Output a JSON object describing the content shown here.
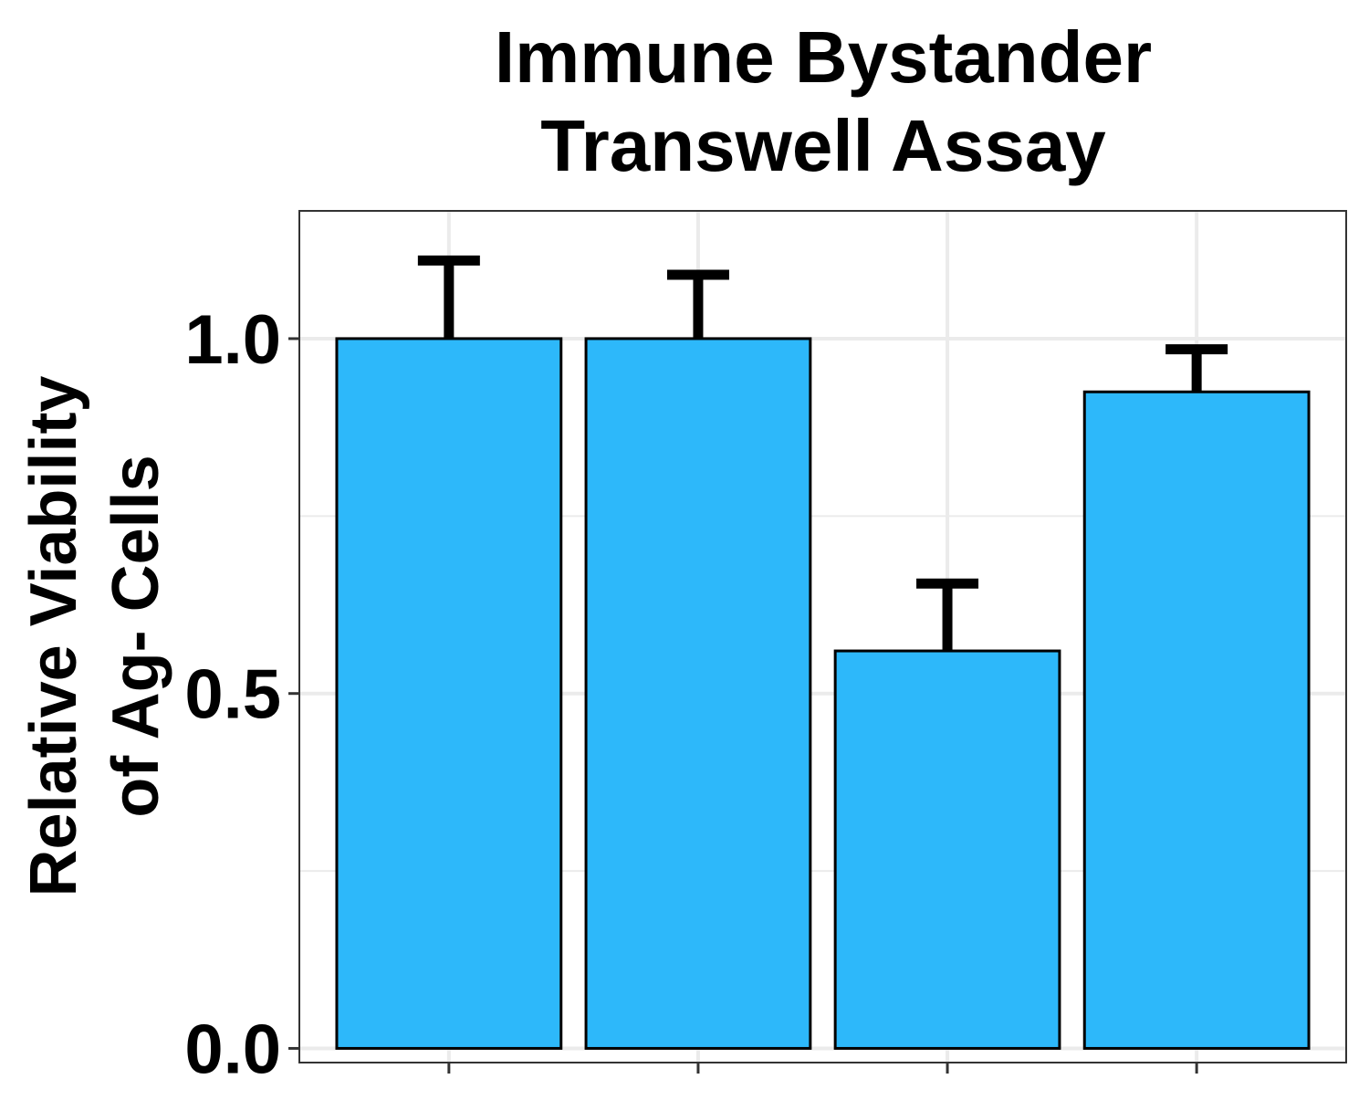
{
  "chart_data": {
    "type": "bar",
    "title": [
      "Immune Bystander",
      "Transwell Assay"
    ],
    "ylabel": [
      "Relative Viability",
      "of Ag- Cells"
    ],
    "xlabel": "",
    "categories": [
      "",
      "",
      "",
      ""
    ],
    "values": [
      1.0,
      1.0,
      0.56,
      0.925
    ],
    "error_upper": [
      1.11,
      1.09,
      0.655,
      0.985
    ],
    "ylim": [
      -0.02,
      1.18
    ],
    "yticks": [
      0.0,
      0.5,
      1.0
    ],
    "ytick_labels": [
      "0.0",
      "0.5",
      "1.0"
    ],
    "minor_gridlines": [
      0.25,
      0.75
    ],
    "grid": true,
    "legend": "none",
    "colors": {
      "bar_fill": "#2db8fa",
      "bar_stroke": "#000000",
      "grid": "#ebebeb",
      "panel_border": "#333333"
    }
  }
}
